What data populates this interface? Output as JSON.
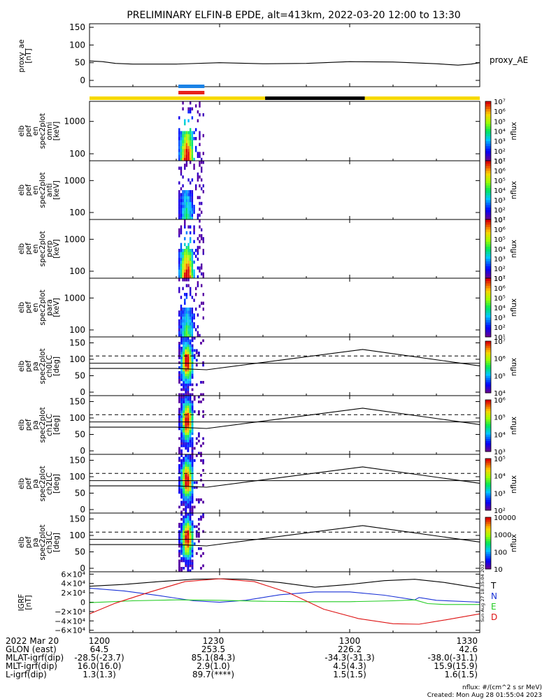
{
  "title": "PRELIMINARY ELFIN-B EPDE, alt=413km, 2022-03-20 12:00 to 13:30",
  "colors": {
    "ae": "#000000",
    "bar_yellow": "#f7d900",
    "bar_black": "#000000",
    "bar_blue": "#1a82e6",
    "bar_red": "#e8221b",
    "grf_T": "#000000",
    "grf_N": "#1a32d6",
    "grf_E": "#22cc22",
    "grf_D": "#dd1111",
    "lc_line": "#000000"
  },
  "ae_panel": {
    "ylabel": [
      "proxy_ae",
      "[nT]"
    ],
    "right_label": "proxy_AE",
    "yticks": [
      "0",
      "50",
      "100",
      "150"
    ]
  },
  "spec_panels": [
    {
      "ylabel": [
        "elb",
        "pef",
        "en",
        "spec2plot",
        "omni",
        "[keV]"
      ],
      "yticks": [
        "100",
        "1000"
      ],
      "cbar_labels": [
        "10¹",
        "10²",
        "10³",
        "10⁴",
        "10⁵",
        "10⁶",
        "10⁷"
      ],
      "cbar_title": "nflux"
    },
    {
      "ylabel": [
        "elb",
        "pef",
        "en",
        "spec2plot",
        "anti",
        "[keV]"
      ],
      "yticks": [
        "100",
        "1000"
      ],
      "cbar_labels": [
        "10¹",
        "10²",
        "10³",
        "10⁴",
        "10⁵",
        "10⁶",
        "10⁷"
      ],
      "cbar_title": "nflux"
    },
    {
      "ylabel": [
        "elb",
        "pef",
        "en",
        "spec2plot",
        "perp",
        "[keV]"
      ],
      "yticks": [
        "100",
        "1000"
      ],
      "cbar_labels": [
        "10¹",
        "10²",
        "10³",
        "10⁴",
        "10⁵",
        "10⁶",
        "10⁷"
      ],
      "cbar_title": "nflux"
    },
    {
      "ylabel": [
        "elb",
        "pef",
        "en",
        "spec2plot",
        "para",
        "[keV]"
      ],
      "yticks": [
        "100",
        "1000"
      ],
      "cbar_labels": [
        "10¹",
        "10²",
        "10³",
        "10⁴",
        "10⁵",
        "10⁶",
        "10⁷"
      ],
      "cbar_title": "nflux"
    }
  ],
  "pa_panels": [
    {
      "ylabel": [
        "elb",
        "pef",
        "pa",
        "spec2plot",
        "ch0LC",
        "[deg]"
      ],
      "yticks": [
        "0",
        "50",
        "100",
        "150"
      ],
      "cbar_labels": [
        "10⁴",
        "10⁵",
        "10⁶",
        "10⁷"
      ],
      "cbar_title": "nflux"
    },
    {
      "ylabel": [
        "elb",
        "pef",
        "pa",
        "spec2plot",
        "ch1LC",
        "[deg]"
      ],
      "yticks": [
        "0",
        "50",
        "100",
        "150"
      ],
      "cbar_labels": [
        "10³",
        "10⁴",
        "10⁵",
        "10⁶"
      ],
      "cbar_title": "nflux"
    },
    {
      "ylabel": [
        "elb",
        "pef",
        "pa",
        "spec2plot",
        "ch2LC",
        "[deg]"
      ],
      "yticks": [
        "0",
        "50",
        "100",
        "150"
      ],
      "cbar_labels": [
        "10²",
        "10³",
        "10⁴",
        "10⁵"
      ],
      "cbar_title": "nflux"
    },
    {
      "ylabel": [
        "elb",
        "pef",
        "pa",
        "spec2plot",
        "ch3LC",
        "[deg]"
      ],
      "yticks": [
        "0",
        "50",
        "100",
        "150"
      ],
      "cbar_labels": [
        "10",
        "100",
        "1000",
        "10000"
      ],
      "cbar_title": "nflux"
    }
  ],
  "grf_panel": {
    "ylabel": [
      "IGRF",
      "[nT]"
    ],
    "yticks": [
      "6×10⁴",
      "4×10⁴",
      "2×10⁴",
      "0",
      "−2×10⁴",
      "−4×10⁴",
      "−6×10⁴"
    ],
    "legend": [
      "T",
      "N",
      "E",
      "D"
    ],
    "stamp": "Sun Aug 27 18:35:04 2023"
  },
  "xaxis": {
    "ticks": [
      "1200",
      "1230",
      "1300",
      "1330"
    ]
  },
  "footer_rows": [
    {
      "label": "2022 Mar 20",
      "values": [
        "1200",
        "1230",
        "1300",
        "1330"
      ]
    },
    {
      "label": "GLON (east)",
      "values": [
        "64.5",
        "253.5",
        "226.2",
        "42.6"
      ]
    },
    {
      "label": "MLAT-igrf(dip)",
      "values": [
        "-28.5(-23.7)",
        "85.1(84.3)",
        "-34.3(-31.3)",
        "-38.0(-31.1)"
      ]
    },
    {
      "label": "MLT-igrf(dip)",
      "values": [
        "16.0(16.0)",
        "2.9(1.0)",
        "4.5(4.3)",
        "15.9(15.9)"
      ]
    },
    {
      "label": "L-igrf(dip)",
      "values": [
        "1.3(1.3)",
        "89.7(****)",
        "1.5(1.5)",
        "1.6(1.5)"
      ]
    }
  ],
  "footnote": "nflux: #/(cm^2 s sr MeV)",
  "created": "Created: Mon Aug 28 01:55:04 2023",
  "chart_data": {
    "type": "line",
    "title": "PRELIMINARY ELFIN-B EPDE, alt=413km, 2022-03-20 12:00 to 13:30",
    "x_unit": "UT minutes from 12:00",
    "xlim": [
      0,
      90
    ],
    "xticks": [
      "1200",
      "1230",
      "1300",
      "1330"
    ],
    "proxy_ae": {
      "ylabel": "proxy_ae [nT]",
      "ylim": [
        0,
        160
      ],
      "x": [
        0,
        3,
        6,
        10,
        20,
        30,
        40,
        50,
        60,
        70,
        80,
        85,
        88,
        90
      ],
      "y": [
        55,
        53,
        48,
        46,
        46,
        50,
        47,
        48,
        53,
        52,
        47,
        43,
        46,
        50
      ]
    },
    "state_bar": [
      {
        "from": 0,
        "to": 40.5,
        "color": "yellow"
      },
      {
        "from": 40.5,
        "to": 63.5,
        "color": "black"
      },
      {
        "from": 63.5,
        "to": 90,
        "color": "yellow"
      }
    ],
    "science_zone_markers": [
      {
        "from": 20.5,
        "to": 26.5,
        "colors": [
          "blue",
          "red"
        ]
      }
    ],
    "burst_window": [
      20.5,
      26.5
    ],
    "loss_cone_lines": {
      "ylabel": "deg",
      "x": [
        0,
        20,
        27,
        63,
        90
      ],
      "lc": [
        72,
        72,
        68,
        130,
        80
      ],
      "dashed_horizontal": 110,
      "solid_horizontal": 88
    },
    "igrf": {
      "ylabel": "IGRF [nT]",
      "ylim": [
        -65000,
        65000
      ],
      "series": [
        {
          "name": "T",
          "x": [
            0,
            8,
            16,
            24,
            30,
            36,
            44,
            52,
            60,
            68,
            75,
            82,
            90
          ],
          "y": [
            34000,
            38000,
            44000,
            49000,
            50000,
            49000,
            42000,
            32000,
            38000,
            46000,
            49000,
            42000,
            30000
          ]
        },
        {
          "name": "N",
          "x": [
            0,
            8,
            16,
            24,
            30,
            36,
            44,
            52,
            60,
            68,
            75,
            76,
            80,
            90
          ],
          "y": [
            30000,
            24000,
            14000,
            3000,
            -200,
            4000,
            16000,
            22000,
            22000,
            15000,
            5000,
            10000,
            4000,
            0
          ]
        },
        {
          "name": "E",
          "x": [
            0,
            10,
            20,
            30,
            40,
            50,
            60,
            70,
            75,
            78,
            82,
            90
          ],
          "y": [
            -1000,
            3000,
            5000,
            4000,
            2000,
            1000,
            1000,
            3000,
            5000,
            -3000,
            -5000,
            -5000
          ]
        },
        {
          "name": "D",
          "x": [
            0,
            6,
            14,
            22,
            30,
            38,
            46,
            54,
            62,
            70,
            76,
            82,
            90
          ],
          "y": [
            -25000,
            -2000,
            22000,
            44000,
            50000,
            44000,
            20000,
            -15000,
            -35000,
            -46000,
            -47000,
            -38000,
            -25000
          ]
        }
      ]
    }
  }
}
